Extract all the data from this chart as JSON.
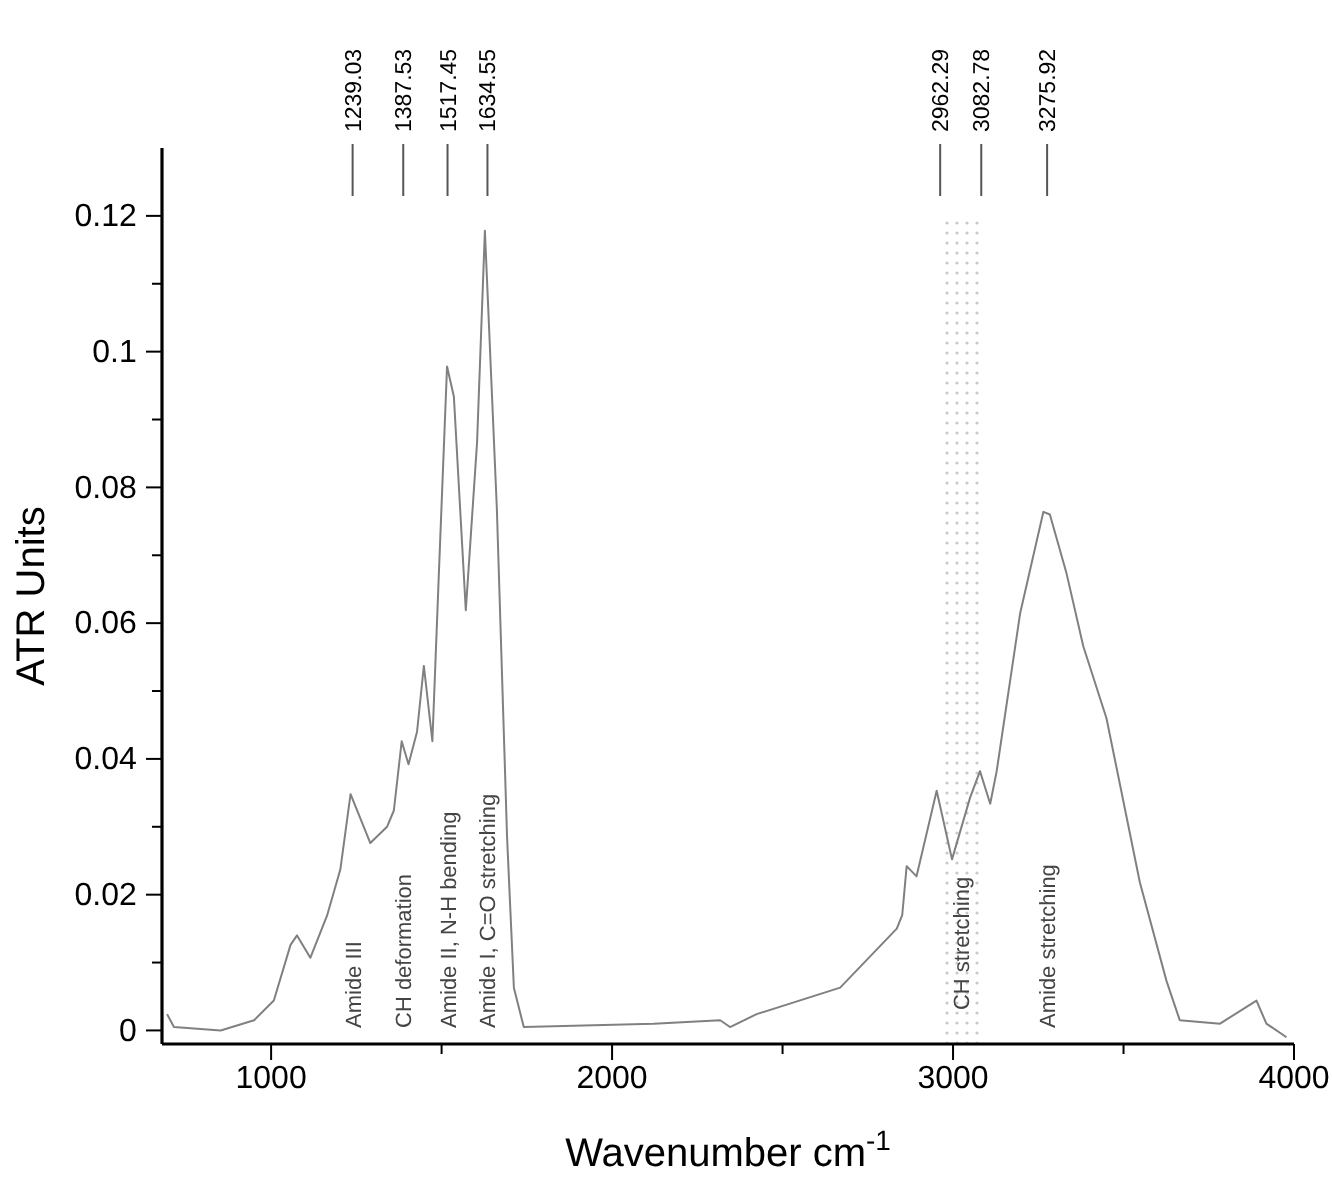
{
  "chart_data": {
    "type": "line",
    "xlabel": "Wavenumber cm$^{-1}$",
    "ylabel": "ATR Units",
    "x": [
      695,
      715,
      852,
      950,
      1008,
      1057,
      1076,
      1115,
      1164,
      1203,
      1233,
      1291,
      1340,
      1360,
      1383,
      1403,
      1428,
      1448,
      1473,
      1492,
      1516,
      1536,
      1571,
      1604,
      1627,
      1662,
      1692,
      1712,
      1741,
      2122,
      2317,
      2346,
      2424,
      2669,
      2835,
      2851,
      2864,
      2893,
      2952,
      2997,
      3050,
      3079,
      3109,
      3128,
      3197,
      3265,
      3284,
      3333,
      3382,
      3450,
      3548,
      3626,
      3665,
      3783,
      3890,
      3919,
      3978
    ],
    "series": [
      {
        "color": "#808080",
        "values": [
          0.0024,
          0.0005,
          0,
          0.0015,
          0.0044,
          0.0126,
          0.014,
          0.0107,
          0.0169,
          0.0237,
          0.0348,
          0.0276,
          0.03,
          0.0324,
          0.0426,
          0.0392,
          0.044,
          0.0537,
          0.0426,
          0.0673,
          0.0978,
          0.0934,
          0.0619,
          0.0866,
          0.1178,
          0.077,
          0.0285,
          0.0063,
          0.0005,
          0.001,
          0.0015,
          0.0005,
          0.0024,
          0.0063,
          0.015,
          0.017,
          0.0242,
          0.0227,
          0.0353,
          0.0252,
          0.0343,
          0.0382,
          0.0334,
          0.0382,
          0.0615,
          0.0764,
          0.076,
          0.0673,
          0.0566,
          0.046,
          0.0218,
          0.0073,
          0.0015,
          0.001,
          0.0044,
          0.001,
          -0.001
        ]
      }
    ],
    "xlim": [
      680,
      4000
    ],
    "ylim": [
      -0.002,
      0.13
    ],
    "xticks": [
      1000,
      {
        "value": 1500,
        "label": null
      },
      2000,
      {
        "value": 2500,
        "label": null
      },
      3000,
      {
        "value": 3500,
        "label": null
      },
      4000
    ],
    "yticks": [
      0,
      {
        "value": 0.01,
        "label": null
      },
      0.02,
      {
        "value": 0.03,
        "label": null
      },
      0.04,
      {
        "value": 0.05,
        "label": null
      },
      0.06,
      {
        "value": 0.07,
        "label": null
      },
      0.08,
      {
        "value": 0.09,
        "label": null
      },
      {
        "value": 0.1,
        "label": "0.1"
      },
      {
        "value": 0.11,
        "label": null
      },
      0.12
    ],
    "grid": false,
    "marker": "none",
    "line_style": "solid",
    "ref_lines": [
      {
        "axis": "x",
        "value": 1239.03,
        "label": "1239.03"
      },
      {
        "axis": "x",
        "value": 1387.53,
        "label": "1387.53"
      },
      {
        "axis": "x",
        "value": 1517.45,
        "label": "1517.45"
      },
      {
        "axis": "x",
        "value": 1634.55,
        "label": "1634.55"
      },
      {
        "axis": "x",
        "value": 2962.29,
        "label": "2962.29"
      },
      {
        "axis": "x",
        "value": 3082.78,
        "label": "3082.78"
      },
      {
        "axis": "x",
        "value": 3275.92,
        "label": "3275.92"
      }
    ],
    "bands": [
      {
        "axis": "x",
        "from": 2962.29,
        "to": 3082.78,
        "label": "CH stretching",
        "color": "#c8c8c8"
      }
    ],
    "annotations": [
      "Amide III",
      "CH deformation",
      "Amide II, N-H bending",
      "Amide I, C=O stretching",
      "Amide stretching"
    ]
  }
}
